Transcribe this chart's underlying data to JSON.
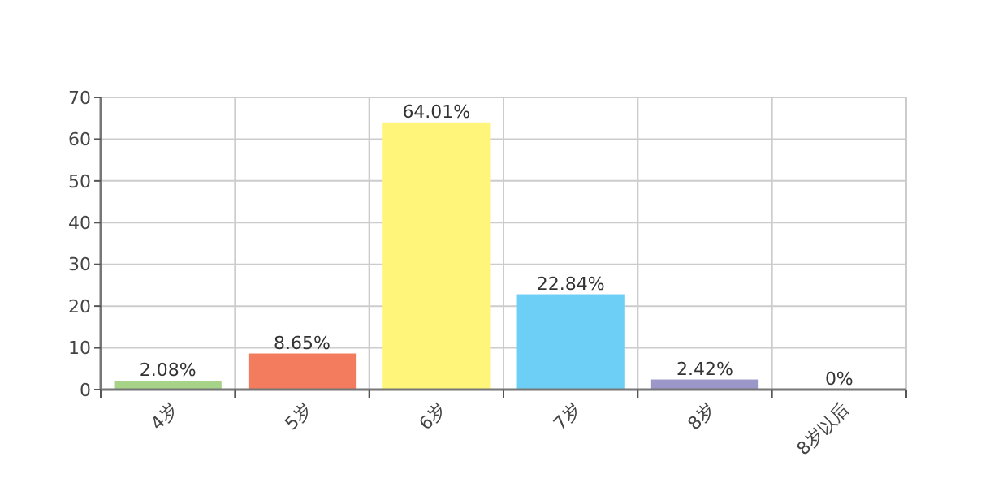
{
  "chart_data": {
    "type": "bar",
    "categories": [
      "4岁",
      "5岁",
      "6岁",
      "7岁",
      "8岁",
      "8岁以后"
    ],
    "values": [
      2.08,
      8.65,
      64.01,
      22.84,
      2.42,
      0
    ],
    "colors": [
      "#a6d388",
      "#f47c5e",
      "#fff57a",
      "#6dcff6",
      "#9b97c9",
      "#8e8e8e"
    ],
    "value_labels": [
      "2.08%",
      "8.65%",
      "64.01%",
      "22.84%",
      "2.42%",
      "0%"
    ],
    "ylim": [
      0,
      70
    ],
    "yticks": [
      0,
      10,
      20,
      30,
      40,
      50,
      60,
      70
    ],
    "grid": true
  }
}
